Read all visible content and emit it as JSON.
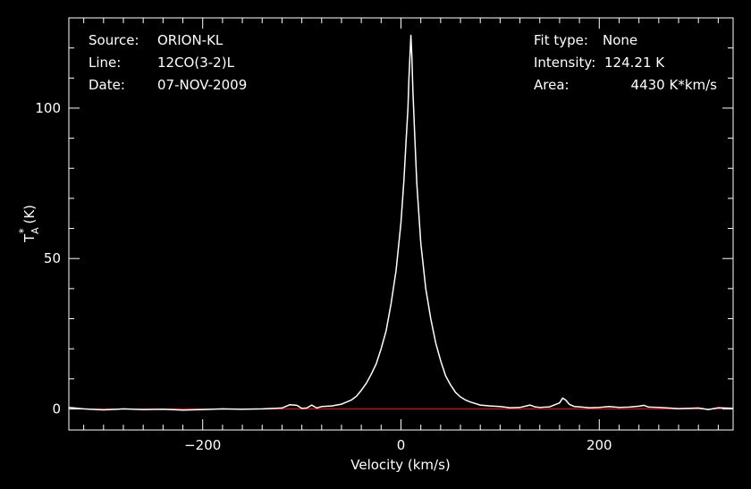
{
  "chart_data": {
    "type": "line",
    "xlabel": "Velocity (km/s)",
    "ylabel_main": "T",
    "ylabel_sub": "A",
    "ylabel_sup": "*",
    "ylabel_unit": " (K)",
    "xlim": [
      -335,
      335
    ],
    "ylim": [
      -7,
      130
    ],
    "xticks": [
      -200,
      0,
      200
    ],
    "yticks": [
      0,
      50,
      100
    ],
    "grid": false,
    "colors": {
      "background": "#000000",
      "axes": "#ffffff",
      "line": "#ffffff",
      "baseline": "#ff0000"
    },
    "baseline_y": 0,
    "series": [
      {
        "x": [
          -335,
          -320,
          -300,
          -280,
          -260,
          -240,
          -220,
          -200,
          -180,
          -160,
          -140,
          -120,
          -112,
          -105,
          -100,
          -95,
          -90,
          -85,
          -80,
          -70,
          -60,
          -50,
          -45,
          -40,
          -35,
          -30,
          -25,
          -20,
          -15,
          -10,
          -5,
          0,
          3,
          5,
          7,
          8,
          9,
          10,
          11,
          12,
          14,
          16,
          20,
          25,
          30,
          35,
          40,
          45,
          50,
          55,
          60,
          65,
          70,
          80,
          90,
          100,
          110,
          120,
          130,
          135,
          140,
          150,
          160,
          163,
          166,
          170,
          175,
          180,
          190,
          200,
          210,
          220,
          230,
          240,
          245,
          250,
          260,
          270,
          280,
          290,
          300,
          310,
          320,
          335
        ],
        "y": [
          0.5,
          0,
          -0.3,
          0,
          -0.2,
          -0.1,
          -0.4,
          -0.2,
          0,
          -0.1,
          0,
          0.3,
          1.4,
          1.2,
          0.2,
          0.3,
          1.3,
          0.3,
          0.8,
          1,
          1.6,
          3,
          4.2,
          6.2,
          8.5,
          11.5,
          15,
          20,
          26,
          35,
          46,
          62,
          76,
          88,
          100,
          110,
          117,
          124.21,
          117,
          106,
          90,
          75,
          55,
          40,
          30,
          22,
          16,
          11,
          8,
          5.5,
          4,
          3,
          2.3,
          1.3,
          1,
          0.8,
          0.4,
          0.5,
          1.3,
          0.7,
          0.5,
          0.7,
          2,
          3.6,
          3,
          1.5,
          0.8,
          0.7,
          0.4,
          0.5,
          0.8,
          0.5,
          0.6,
          0.9,
          1.2,
          0.6,
          0.5,
          0.3,
          0.1,
          0.2,
          0.3,
          -0.2,
          0.4,
          0.2
        ]
      }
    ]
  },
  "info": {
    "source_label": "Source:",
    "source_value": "ORION-KL",
    "line_label": "Line:",
    "line_value": "12CO(3-2)L",
    "date_label": "Date:",
    "date_value": "07-NOV-2009",
    "fit_label": "Fit type:",
    "fit_value": "None",
    "intensity_label": "Intensity:",
    "intensity_value": "124.21 K",
    "area_label": "Area:",
    "area_value": "4430 K*km/s"
  }
}
